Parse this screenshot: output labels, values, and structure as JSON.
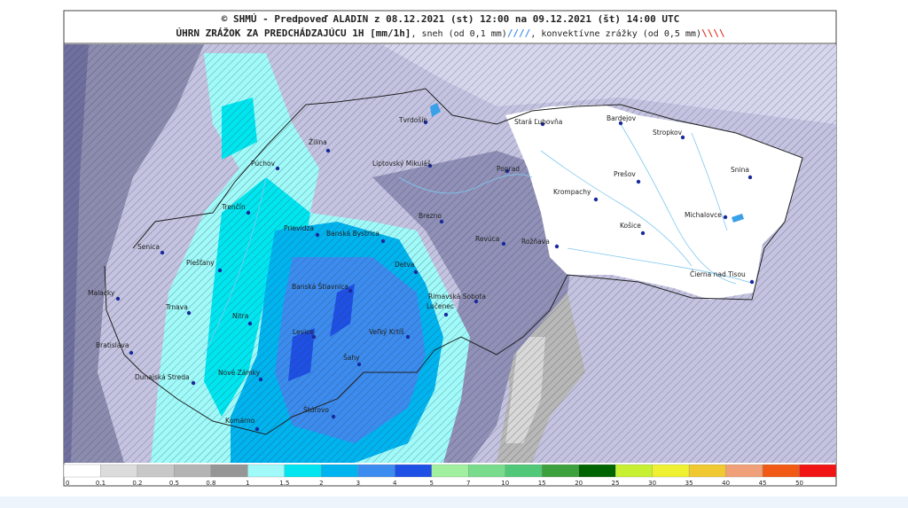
{
  "header": {
    "title": "© SHMÚ - Predpoveď ALADIN z 08.12.2021 (st) 12:00 na 09.12.2021 (št) 14:00 UTC",
    "subtitle": "ÚHRN ZRÁŽOK ZA PREDCHÁDZAJÚCU 1H [mm/1h]",
    "snow_note": ", sneh (od 0,1 mm)",
    "snow_symbol": "////",
    "convective_note": ", konvektívne zrážky (od 0,5 mm)",
    "convective_symbol": "\\\\\\\\"
  },
  "cities": [
    {
      "name": "Tvrdošín"
    },
    {
      "name": "Žilina"
    },
    {
      "name": "Púchov"
    },
    {
      "name": "Liptovský Mikuláš"
    },
    {
      "name": "Poprad"
    },
    {
      "name": "Stará Ľubovňa"
    },
    {
      "name": "Bardejov"
    },
    {
      "name": "Stropkov"
    },
    {
      "name": "Snina"
    },
    {
      "name": "Prešov"
    },
    {
      "name": "Krompachy"
    },
    {
      "name": "Michalovce"
    },
    {
      "name": "Košice"
    },
    {
      "name": "Čierna nad Tisou"
    },
    {
      "name": "Trenčín"
    },
    {
      "name": "Prievidza"
    },
    {
      "name": "Banská Bystrica"
    },
    {
      "name": "Brezno"
    },
    {
      "name": "Revúca"
    },
    {
      "name": "Rožňava"
    },
    {
      "name": "Senica"
    },
    {
      "name": "Piešťany"
    },
    {
      "name": "Detva"
    },
    {
      "name": "Rimavská Sobota"
    },
    {
      "name": "Lučenec"
    },
    {
      "name": "Banská Štiavnica"
    },
    {
      "name": "Malacky"
    },
    {
      "name": "Trnava"
    },
    {
      "name": "Nitra"
    },
    {
      "name": "Levice"
    },
    {
      "name": "Veľký Krtíš"
    },
    {
      "name": "Šahy"
    },
    {
      "name": "Bratislava"
    },
    {
      "name": "Dunajská Streda"
    },
    {
      "name": "Nové Zámky"
    },
    {
      "name": "Štúrovo"
    },
    {
      "name": "Komárno"
    }
  ],
  "colorbar": {
    "labels": [
      "0",
      "0.1",
      "0.2",
      "0.5",
      "0.8",
      "1",
      "1.5",
      "2",
      "3",
      "4",
      "5",
      "7",
      "10",
      "15",
      "20",
      "25",
      "30",
      "35",
      "40",
      "45",
      "50"
    ],
    "colors": [
      "#ffffff",
      "#dcdcdc",
      "#c8c8c8",
      "#b4b4b4",
      "#969696",
      "#a0fafa",
      "#00e6f0",
      "#00b4f0",
      "#3c8cf0",
      "#1e50e6",
      "#a0f0a0",
      "#78dc8c",
      "#50c878",
      "#3ca03c",
      "#006400",
      "#c8f032",
      "#f0f032",
      "#f0c832",
      "#f0a078",
      "#f05a14",
      "#f01414"
    ]
  }
}
